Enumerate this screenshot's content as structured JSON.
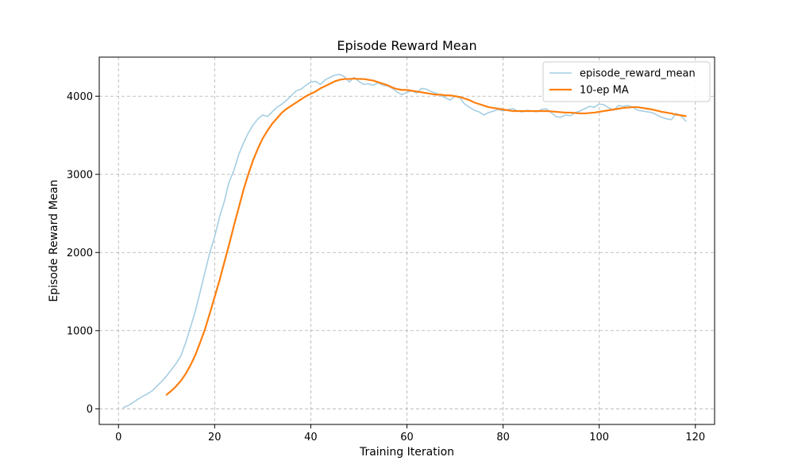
{
  "chart_data": {
    "type": "line",
    "title": "Episode Reward Mean",
    "xlabel": "Training Iteration",
    "ylabel": "Episode Reward Mean",
    "xlim": [
      -4,
      124
    ],
    "ylim": [
      -200,
      4500
    ],
    "xticks": [
      0,
      20,
      40,
      60,
      80,
      100,
      120
    ],
    "yticks": [
      0,
      1000,
      2000,
      3000,
      4000
    ],
    "grid": true,
    "legend_position": "top-right",
    "series": [
      {
        "name": "episode_reward_mean",
        "color": "#a6cee3",
        "points": [
          [
            1,
            15
          ],
          [
            2,
            40
          ],
          [
            3,
            80
          ],
          [
            4,
            120
          ],
          [
            5,
            160
          ],
          [
            6,
            190
          ],
          [
            7,
            230
          ],
          [
            8,
            290
          ],
          [
            9,
            350
          ],
          [
            10,
            420
          ],
          [
            11,
            500
          ],
          [
            12,
            580
          ],
          [
            13,
            680
          ],
          [
            14,
            850
          ],
          [
            15,
            1050
          ],
          [
            16,
            1250
          ],
          [
            17,
            1500
          ],
          [
            18,
            1750
          ],
          [
            19,
            2000
          ],
          [
            20,
            2200
          ],
          [
            21,
            2450
          ],
          [
            22,
            2650
          ],
          [
            23,
            2900
          ],
          [
            24,
            3050
          ],
          [
            25,
            3250
          ],
          [
            26,
            3400
          ],
          [
            27,
            3530
          ],
          [
            28,
            3630
          ],
          [
            29,
            3710
          ],
          [
            30,
            3760
          ],
          [
            31,
            3740
          ],
          [
            32,
            3800
          ],
          [
            33,
            3860
          ],
          [
            34,
            3900
          ],
          [
            35,
            3950
          ],
          [
            36,
            4010
          ],
          [
            37,
            4070
          ],
          [
            38,
            4090
          ],
          [
            39,
            4140
          ],
          [
            40,
            4180
          ],
          [
            41,
            4190
          ],
          [
            42,
            4150
          ],
          [
            43,
            4210
          ],
          [
            44,
            4240
          ],
          [
            45,
            4270
          ],
          [
            46,
            4280
          ],
          [
            47,
            4250
          ],
          [
            48,
            4180
          ],
          [
            49,
            4240
          ],
          [
            50,
            4190
          ],
          [
            51,
            4150
          ],
          [
            52,
            4160
          ],
          [
            53,
            4140
          ],
          [
            54,
            4170
          ],
          [
            55,
            4140
          ],
          [
            56,
            4130
          ],
          [
            57,
            4100
          ],
          [
            58,
            4050
          ],
          [
            59,
            4020
          ],
          [
            60,
            4050
          ],
          [
            61,
            4070
          ],
          [
            62,
            4040
          ],
          [
            63,
            4100
          ],
          [
            64,
            4090
          ],
          [
            65,
            4060
          ],
          [
            66,
            4040
          ],
          [
            67,
            4010
          ],
          [
            68,
            3980
          ],
          [
            69,
            3950
          ],
          [
            70,
            4000
          ],
          [
            71,
            3980
          ],
          [
            72,
            3900
          ],
          [
            73,
            3860
          ],
          [
            74,
            3820
          ],
          [
            75,
            3800
          ],
          [
            76,
            3760
          ],
          [
            77,
            3790
          ],
          [
            78,
            3810
          ],
          [
            79,
            3830
          ],
          [
            80,
            3810
          ],
          [
            81,
            3830
          ],
          [
            82,
            3840
          ],
          [
            83,
            3810
          ],
          [
            84,
            3800
          ],
          [
            85,
            3820
          ],
          [
            86,
            3810
          ],
          [
            87,
            3800
          ],
          [
            88,
            3830
          ],
          [
            89,
            3840
          ],
          [
            90,
            3790
          ],
          [
            91,
            3740
          ],
          [
            92,
            3730
          ],
          [
            93,
            3760
          ],
          [
            94,
            3750
          ],
          [
            95,
            3790
          ],
          [
            96,
            3810
          ],
          [
            97,
            3840
          ],
          [
            98,
            3870
          ],
          [
            99,
            3860
          ],
          [
            100,
            3900
          ],
          [
            101,
            3890
          ],
          [
            102,
            3850
          ],
          [
            103,
            3820
          ],
          [
            104,
            3880
          ],
          [
            105,
            3870
          ],
          [
            106,
            3880
          ],
          [
            107,
            3860
          ],
          [
            108,
            3820
          ],
          [
            109,
            3810
          ],
          [
            110,
            3800
          ],
          [
            111,
            3790
          ],
          [
            112,
            3760
          ],
          [
            113,
            3730
          ],
          [
            114,
            3710
          ],
          [
            115,
            3700
          ],
          [
            116,
            3780
          ],
          [
            117,
            3750
          ],
          [
            118,
            3680
          ]
        ]
      },
      {
        "name": "10-ep MA",
        "color": "#ff7f0e",
        "points": [
          [
            10,
            180
          ],
          [
            11,
            230
          ],
          [
            12,
            290
          ],
          [
            13,
            360
          ],
          [
            14,
            450
          ],
          [
            15,
            560
          ],
          [
            16,
            690
          ],
          [
            17,
            850
          ],
          [
            18,
            1020
          ],
          [
            19,
            1220
          ],
          [
            20,
            1430
          ],
          [
            21,
            1640
          ],
          [
            22,
            1870
          ],
          [
            23,
            2100
          ],
          [
            24,
            2340
          ],
          [
            25,
            2570
          ],
          [
            26,
            2800
          ],
          [
            27,
            3000
          ],
          [
            28,
            3180
          ],
          [
            29,
            3330
          ],
          [
            30,
            3460
          ],
          [
            31,
            3560
          ],
          [
            32,
            3650
          ],
          [
            33,
            3720
          ],
          [
            34,
            3790
          ],
          [
            35,
            3840
          ],
          [
            36,
            3880
          ],
          [
            37,
            3920
          ],
          [
            38,
            3960
          ],
          [
            39,
            4000
          ],
          [
            40,
            4030
          ],
          [
            41,
            4060
          ],
          [
            42,
            4100
          ],
          [
            43,
            4130
          ],
          [
            44,
            4160
          ],
          [
            45,
            4190
          ],
          [
            46,
            4210
          ],
          [
            47,
            4220
          ],
          [
            48,
            4220
          ],
          [
            49,
            4225
          ],
          [
            50,
            4220
          ],
          [
            51,
            4220
          ],
          [
            52,
            4210
          ],
          [
            53,
            4200
          ],
          [
            54,
            4180
          ],
          [
            55,
            4160
          ],
          [
            56,
            4140
          ],
          [
            57,
            4110
          ],
          [
            58,
            4090
          ],
          [
            59,
            4080
          ],
          [
            60,
            4080
          ],
          [
            61,
            4070
          ],
          [
            62,
            4060
          ],
          [
            63,
            4050
          ],
          [
            64,
            4040
          ],
          [
            65,
            4030
          ],
          [
            66,
            4020
          ],
          [
            67,
            4020
          ],
          [
            68,
            4010
          ],
          [
            69,
            4010
          ],
          [
            70,
            4000
          ],
          [
            71,
            3990
          ],
          [
            72,
            3970
          ],
          [
            73,
            3950
          ],
          [
            74,
            3920
          ],
          [
            75,
            3900
          ],
          [
            76,
            3880
          ],
          [
            77,
            3860
          ],
          [
            78,
            3850
          ],
          [
            79,
            3840
          ],
          [
            80,
            3830
          ],
          [
            81,
            3820
          ],
          [
            82,
            3810
          ],
          [
            83,
            3810
          ],
          [
            84,
            3810
          ],
          [
            85,
            3810
          ],
          [
            86,
            3810
          ],
          [
            87,
            3810
          ],
          [
            88,
            3810
          ],
          [
            89,
            3810
          ],
          [
            90,
            3805
          ],
          [
            91,
            3800
          ],
          [
            92,
            3795
          ],
          [
            93,
            3790
          ],
          [
            94,
            3790
          ],
          [
            95,
            3785
          ],
          [
            96,
            3780
          ],
          [
            97,
            3780
          ],
          [
            98,
            3785
          ],
          [
            99,
            3790
          ],
          [
            100,
            3800
          ],
          [
            101,
            3810
          ],
          [
            102,
            3820
          ],
          [
            103,
            3830
          ],
          [
            104,
            3840
          ],
          [
            105,
            3850
          ],
          [
            106,
            3855
          ],
          [
            107,
            3860
          ],
          [
            108,
            3860
          ],
          [
            109,
            3850
          ],
          [
            110,
            3840
          ],
          [
            111,
            3830
          ],
          [
            112,
            3815
          ],
          [
            113,
            3800
          ],
          [
            114,
            3790
          ],
          [
            115,
            3780
          ],
          [
            116,
            3765
          ],
          [
            117,
            3755
          ],
          [
            118,
            3745
          ]
        ]
      }
    ]
  }
}
